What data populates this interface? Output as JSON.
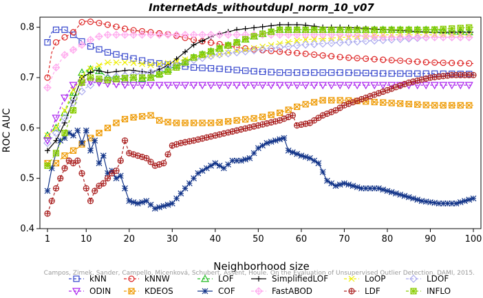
{
  "chart_data": {
    "type": "line",
    "title": "InternetAds_withoutdupl_norm_10_v07",
    "xlabel": "Neighborhood size",
    "ylabel": "ROC AUC",
    "xlim": [
      1,
      100
    ],
    "ylim": [
      0.4,
      0.82
    ],
    "xticks": [
      1,
      10,
      20,
      30,
      40,
      50,
      60,
      70,
      80,
      90,
      100
    ],
    "yticks": [
      0.4,
      0.5,
      0.6,
      0.7,
      0.8
    ],
    "grid": false,
    "legend_position": "bottom",
    "watermark": "Campos, Zimek, Sander, Campello, Micenková, Schubert, Assent, Houle. On the Evaluation of Unsupervised Outlier Detection. DAMI, 2015.",
    "series": [
      {
        "name": "kNN",
        "color": "#3344cc",
        "marker": "square",
        "points": [
          [
            1,
            0.77
          ],
          [
            2,
            0.79
          ],
          [
            3,
            0.795
          ],
          [
            5,
            0.795
          ],
          [
            7,
            0.785
          ],
          [
            10,
            0.765
          ],
          [
            15,
            0.75
          ],
          [
            20,
            0.74
          ],
          [
            25,
            0.73
          ],
          [
            30,
            0.725
          ],
          [
            35,
            0.72
          ],
          [
            40,
            0.718
          ],
          [
            45,
            0.715
          ],
          [
            50,
            0.712
          ],
          [
            55,
            0.71
          ],
          [
            60,
            0.71
          ],
          [
            70,
            0.71
          ],
          [
            80,
            0.708
          ],
          [
            90,
            0.708
          ],
          [
            100,
            0.707
          ]
        ]
      },
      {
        "name": "kNNW",
        "color": "#dd2222",
        "marker": "circle",
        "points": [
          [
            1,
            0.7
          ],
          [
            2,
            0.75
          ],
          [
            3,
            0.77
          ],
          [
            5,
            0.78
          ],
          [
            7,
            0.79
          ],
          [
            9,
            0.81
          ],
          [
            10,
            0.812
          ],
          [
            12,
            0.81
          ],
          [
            15,
            0.805
          ],
          [
            20,
            0.795
          ],
          [
            25,
            0.79
          ],
          [
            30,
            0.785
          ],
          [
            35,
            0.775
          ],
          [
            40,
            0.768
          ],
          [
            45,
            0.76
          ],
          [
            50,
            0.755
          ],
          [
            60,
            0.748
          ],
          [
            70,
            0.74
          ],
          [
            80,
            0.735
          ],
          [
            90,
            0.73
          ],
          [
            100,
            0.728
          ]
        ]
      },
      {
        "name": "LOF",
        "color": "#22bb22",
        "marker": "triangle-up",
        "points": [
          [
            1,
            0.585
          ],
          [
            3,
            0.6
          ],
          [
            5,
            0.63
          ],
          [
            7,
            0.67
          ],
          [
            9,
            0.71
          ],
          [
            12,
            0.72
          ],
          [
            15,
            0.7
          ],
          [
            20,
            0.695
          ],
          [
            25,
            0.7
          ],
          [
            30,
            0.72
          ],
          [
            35,
            0.74
          ],
          [
            40,
            0.755
          ],
          [
            45,
            0.77
          ],
          [
            50,
            0.785
          ],
          [
            55,
            0.795
          ],
          [
            60,
            0.795
          ],
          [
            70,
            0.795
          ],
          [
            80,
            0.795
          ],
          [
            90,
            0.795
          ],
          [
            100,
            0.79
          ]
        ]
      },
      {
        "name": "SimplifiedLOF",
        "color": "#000000",
        "marker": "plus",
        "points": [
          [
            1,
            0.555
          ],
          [
            3,
            0.575
          ],
          [
            5,
            0.61
          ],
          [
            7,
            0.655
          ],
          [
            9,
            0.7
          ],
          [
            12,
            0.715
          ],
          [
            15,
            0.71
          ],
          [
            20,
            0.715
          ],
          [
            25,
            0.71
          ],
          [
            28,
            0.72
          ],
          [
            30,
            0.73
          ],
          [
            35,
            0.765
          ],
          [
            40,
            0.785
          ],
          [
            45,
            0.795
          ],
          [
            50,
            0.8
          ],
          [
            55,
            0.805
          ],
          [
            60,
            0.805
          ],
          [
            65,
            0.8
          ],
          [
            70,
            0.8
          ],
          [
            80,
            0.795
          ],
          [
            90,
            0.79
          ],
          [
            100,
            0.79
          ]
        ]
      },
      {
        "name": "LoOP",
        "color": "#eeee00",
        "marker": "x",
        "points": [
          [
            1,
            0.585
          ],
          [
            3,
            0.6
          ],
          [
            5,
            0.635
          ],
          [
            7,
            0.675
          ],
          [
            10,
            0.715
          ],
          [
            15,
            0.73
          ],
          [
            20,
            0.73
          ],
          [
            25,
            0.725
          ],
          [
            30,
            0.73
          ],
          [
            35,
            0.74
          ],
          [
            40,
            0.745
          ],
          [
            50,
            0.76
          ],
          [
            60,
            0.775
          ],
          [
            70,
            0.78
          ],
          [
            80,
            0.785
          ],
          [
            90,
            0.785
          ],
          [
            100,
            0.785
          ]
        ]
      },
      {
        "name": "LDOF",
        "color": "#aaaaee",
        "marker": "diamond",
        "points": [
          [
            1,
            0.57
          ],
          [
            3,
            0.59
          ],
          [
            5,
            0.62
          ],
          [
            8,
            0.665
          ],
          [
            10,
            0.68
          ],
          [
            12,
            0.69
          ],
          [
            15,
            0.7
          ],
          [
            20,
            0.705
          ],
          [
            25,
            0.71
          ],
          [
            30,
            0.72
          ],
          [
            35,
            0.735
          ],
          [
            40,
            0.745
          ],
          [
            50,
            0.755
          ],
          [
            60,
            0.765
          ],
          [
            70,
            0.77
          ],
          [
            80,
            0.775
          ],
          [
            90,
            0.78
          ],
          [
            100,
            0.78
          ]
        ]
      },
      {
        "name": "ODIN",
        "color": "#aa22ee",
        "marker": "triangle-down",
        "points": [
          [
            1,
            0.575
          ],
          [
            3,
            0.62
          ],
          [
            5,
            0.66
          ],
          [
            7,
            0.685
          ],
          [
            9,
            0.69
          ],
          [
            11,
            0.692
          ],
          [
            15,
            0.688
          ],
          [
            20,
            0.685
          ],
          [
            25,
            0.685
          ],
          [
            30,
            0.685
          ],
          [
            40,
            0.685
          ],
          [
            50,
            0.685
          ],
          [
            60,
            0.685
          ],
          [
            70,
            0.685
          ],
          [
            80,
            0.685
          ],
          [
            90,
            0.685
          ],
          [
            100,
            0.685
          ]
        ]
      },
      {
        "name": "KDEOS",
        "color": "#ee9900",
        "marker": "square-x",
        "points": [
          [
            1,
            0.53
          ],
          [
            3,
            0.53
          ],
          [
            5,
            0.545
          ],
          [
            8,
            0.56
          ],
          [
            10,
            0.575
          ],
          [
            12,
            0.585
          ],
          [
            15,
            0.6
          ],
          [
            18,
            0.615
          ],
          [
            20,
            0.62
          ],
          [
            25,
            0.625
          ],
          [
            27,
            0.615
          ],
          [
            30,
            0.61
          ],
          [
            35,
            0.61
          ],
          [
            40,
            0.61
          ],
          [
            45,
            0.615
          ],
          [
            50,
            0.62
          ],
          [
            55,
            0.63
          ],
          [
            60,
            0.645
          ],
          [
            65,
            0.655
          ],
          [
            70,
            0.655
          ],
          [
            80,
            0.65
          ],
          [
            90,
            0.645
          ],
          [
            100,
            0.645
          ]
        ]
      },
      {
        "name": "COF",
        "color": "#113388",
        "marker": "asterisk",
        "points": [
          [
            1,
            0.475
          ],
          [
            2,
            0.52
          ],
          [
            3,
            0.55
          ],
          [
            4,
            0.575
          ],
          [
            5,
            0.58
          ],
          [
            6,
            0.59
          ],
          [
            7,
            0.585
          ],
          [
            8,
            0.595
          ],
          [
            9,
            0.57
          ],
          [
            10,
            0.595
          ],
          [
            11,
            0.555
          ],
          [
            12,
            0.575
          ],
          [
            13,
            0.53
          ],
          [
            14,
            0.545
          ],
          [
            15,
            0.51
          ],
          [
            16,
            0.515
          ],
          [
            17,
            0.5
          ],
          [
            18,
            0.505
          ],
          [
            19,
            0.48
          ],
          [
            20,
            0.455
          ],
          [
            22,
            0.45
          ],
          [
            24,
            0.455
          ],
          [
            26,
            0.44
          ],
          [
            28,
            0.445
          ],
          [
            30,
            0.45
          ],
          [
            32,
            0.47
          ],
          [
            34,
            0.49
          ],
          [
            36,
            0.51
          ],
          [
            38,
            0.52
          ],
          [
            40,
            0.53
          ],
          [
            42,
            0.52
          ],
          [
            44,
            0.535
          ],
          [
            46,
            0.535
          ],
          [
            48,
            0.54
          ],
          [
            50,
            0.56
          ],
          [
            52,
            0.57
          ],
          [
            54,
            0.575
          ],
          [
            56,
            0.58
          ],
          [
            57,
            0.555
          ],
          [
            60,
            0.545
          ],
          [
            62,
            0.54
          ],
          [
            64,
            0.53
          ],
          [
            66,
            0.495
          ],
          [
            68,
            0.485
          ],
          [
            70,
            0.49
          ],
          [
            74,
            0.48
          ],
          [
            78,
            0.48
          ],
          [
            82,
            0.47
          ],
          [
            86,
            0.46
          ],
          [
            88,
            0.455
          ],
          [
            92,
            0.45
          ],
          [
            96,
            0.45
          ],
          [
            100,
            0.46
          ]
        ]
      },
      {
        "name": "FastABOD",
        "color": "#ffaaee",
        "marker": "diamond-plus",
        "points": [
          [
            1,
            0.68
          ],
          [
            3,
            0.72
          ],
          [
            5,
            0.745
          ],
          [
            8,
            0.76
          ],
          [
            10,
            0.77
          ],
          [
            12,
            0.78
          ],
          [
            15,
            0.785
          ],
          [
            20,
            0.785
          ],
          [
            25,
            0.785
          ],
          [
            30,
            0.785
          ],
          [
            35,
            0.785
          ],
          [
            40,
            0.785
          ],
          [
            50,
            0.785
          ],
          [
            60,
            0.785
          ],
          [
            70,
            0.785
          ],
          [
            80,
            0.78
          ],
          [
            90,
            0.78
          ],
          [
            100,
            0.78
          ]
        ]
      },
      {
        "name": "LDF",
        "color": "#aa2222",
        "marker": "circle-plus",
        "points": [
          [
            1,
            0.43
          ],
          [
            2,
            0.455
          ],
          [
            3,
            0.48
          ],
          [
            4,
            0.5
          ],
          [
            5,
            0.52
          ],
          [
            6,
            0.535
          ],
          [
            7,
            0.53
          ],
          [
            8,
            0.535
          ],
          [
            9,
            0.51
          ],
          [
            10,
            0.48
          ],
          [
            11,
            0.455
          ],
          [
            12,
            0.475
          ],
          [
            13,
            0.485
          ],
          [
            14,
            0.49
          ],
          [
            15,
            0.5
          ],
          [
            16,
            0.51
          ],
          [
            17,
            0.515
          ],
          [
            18,
            0.535
          ],
          [
            19,
            0.575
          ],
          [
            20,
            0.55
          ],
          [
            22,
            0.545
          ],
          [
            24,
            0.54
          ],
          [
            26,
            0.525
          ],
          [
            28,
            0.53
          ],
          [
            30,
            0.565
          ],
          [
            32,
            0.57
          ],
          [
            35,
            0.575
          ],
          [
            40,
            0.585
          ],
          [
            45,
            0.595
          ],
          [
            50,
            0.605
          ],
          [
            55,
            0.615
          ],
          [
            58,
            0.625
          ],
          [
            59,
            0.605
          ],
          [
            62,
            0.61
          ],
          [
            65,
            0.625
          ],
          [
            68,
            0.635
          ],
          [
            70,
            0.645
          ],
          [
            75,
            0.66
          ],
          [
            80,
            0.675
          ],
          [
            85,
            0.69
          ],
          [
            90,
            0.7
          ],
          [
            95,
            0.705
          ],
          [
            100,
            0.705
          ]
        ]
      },
      {
        "name": "INFLO",
        "color": "#88cc00",
        "marker": "square-asterisk",
        "points": [
          [
            1,
            0.525
          ],
          [
            3,
            0.55
          ],
          [
            5,
            0.59
          ],
          [
            7,
            0.635
          ],
          [
            9,
            0.69
          ],
          [
            11,
            0.7
          ],
          [
            15,
            0.695
          ],
          [
            20,
            0.7
          ],
          [
            25,
            0.7
          ],
          [
            30,
            0.715
          ],
          [
            35,
            0.74
          ],
          [
            40,
            0.755
          ],
          [
            45,
            0.77
          ],
          [
            50,
            0.785
          ],
          [
            55,
            0.795
          ],
          [
            60,
            0.795
          ],
          [
            70,
            0.795
          ],
          [
            80,
            0.795
          ],
          [
            90,
            0.795
          ],
          [
            100,
            0.8
          ]
        ]
      }
    ]
  }
}
